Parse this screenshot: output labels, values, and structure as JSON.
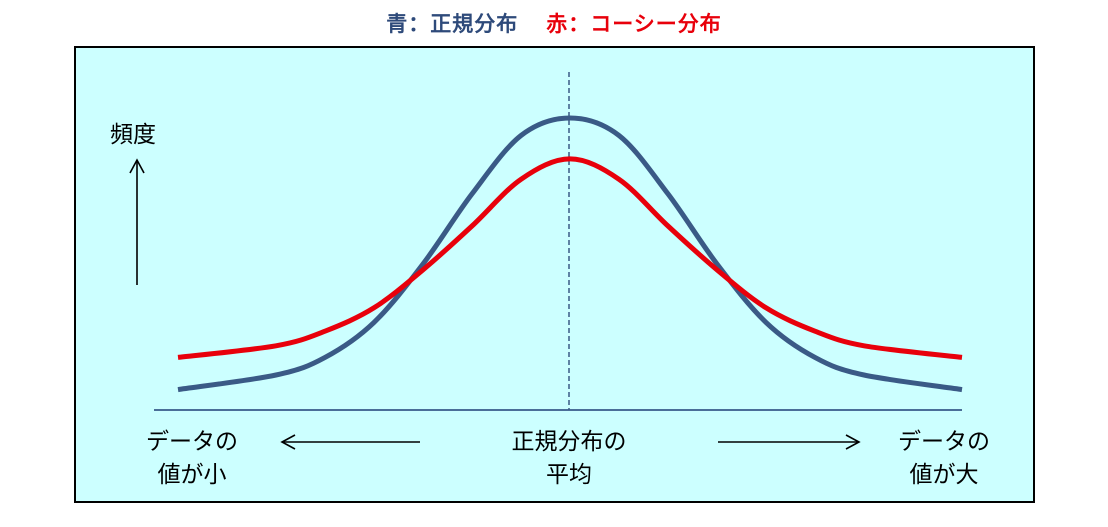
{
  "title": {
    "normal": "青：正規分布",
    "cauchy": "赤：コーシー分布"
  },
  "y_axis_label": "頻度",
  "x_labels": {
    "left_line1": "データの",
    "left_line2": "値が小",
    "center_line1": "正規分布の",
    "center_line2": "平均",
    "right_line1": "データの",
    "right_line2": "値が大"
  },
  "colors": {
    "normal": "#3a5a86",
    "cauchy": "#e8000b",
    "background": "#ccffff",
    "baseline": "#4a6e98"
  },
  "chart_data": {
    "type": "line",
    "series": [
      {
        "name": "青：正規分布",
        "color": "#3a5a86",
        "x": [
          -4,
          -3,
          -2.5,
          -2,
          -1.5,
          -1,
          -0.5,
          0,
          0.5,
          1,
          1.5,
          2,
          2.5,
          3,
          4
        ],
        "y": [
          0.07,
          0.12,
          0.18,
          0.3,
          0.5,
          0.74,
          0.94,
          1.0,
          0.94,
          0.74,
          0.5,
          0.3,
          0.18,
          0.12,
          0.07
        ]
      },
      {
        "name": "赤：コーシー分布",
        "color": "#e8000b",
        "x": [
          -4,
          -3,
          -2.5,
          -2,
          -1.5,
          -1,
          -0.5,
          0,
          0.5,
          1,
          1.5,
          2,
          2.5,
          3,
          4
        ],
        "y": [
          0.18,
          0.22,
          0.27,
          0.35,
          0.48,
          0.63,
          0.79,
          0.86,
          0.79,
          0.63,
          0.48,
          0.35,
          0.27,
          0.22,
          0.18
        ]
      }
    ],
    "xlim": [
      -4,
      4
    ],
    "ylim": [
      0,
      1
    ],
    "grid": false,
    "legend": "top"
  }
}
